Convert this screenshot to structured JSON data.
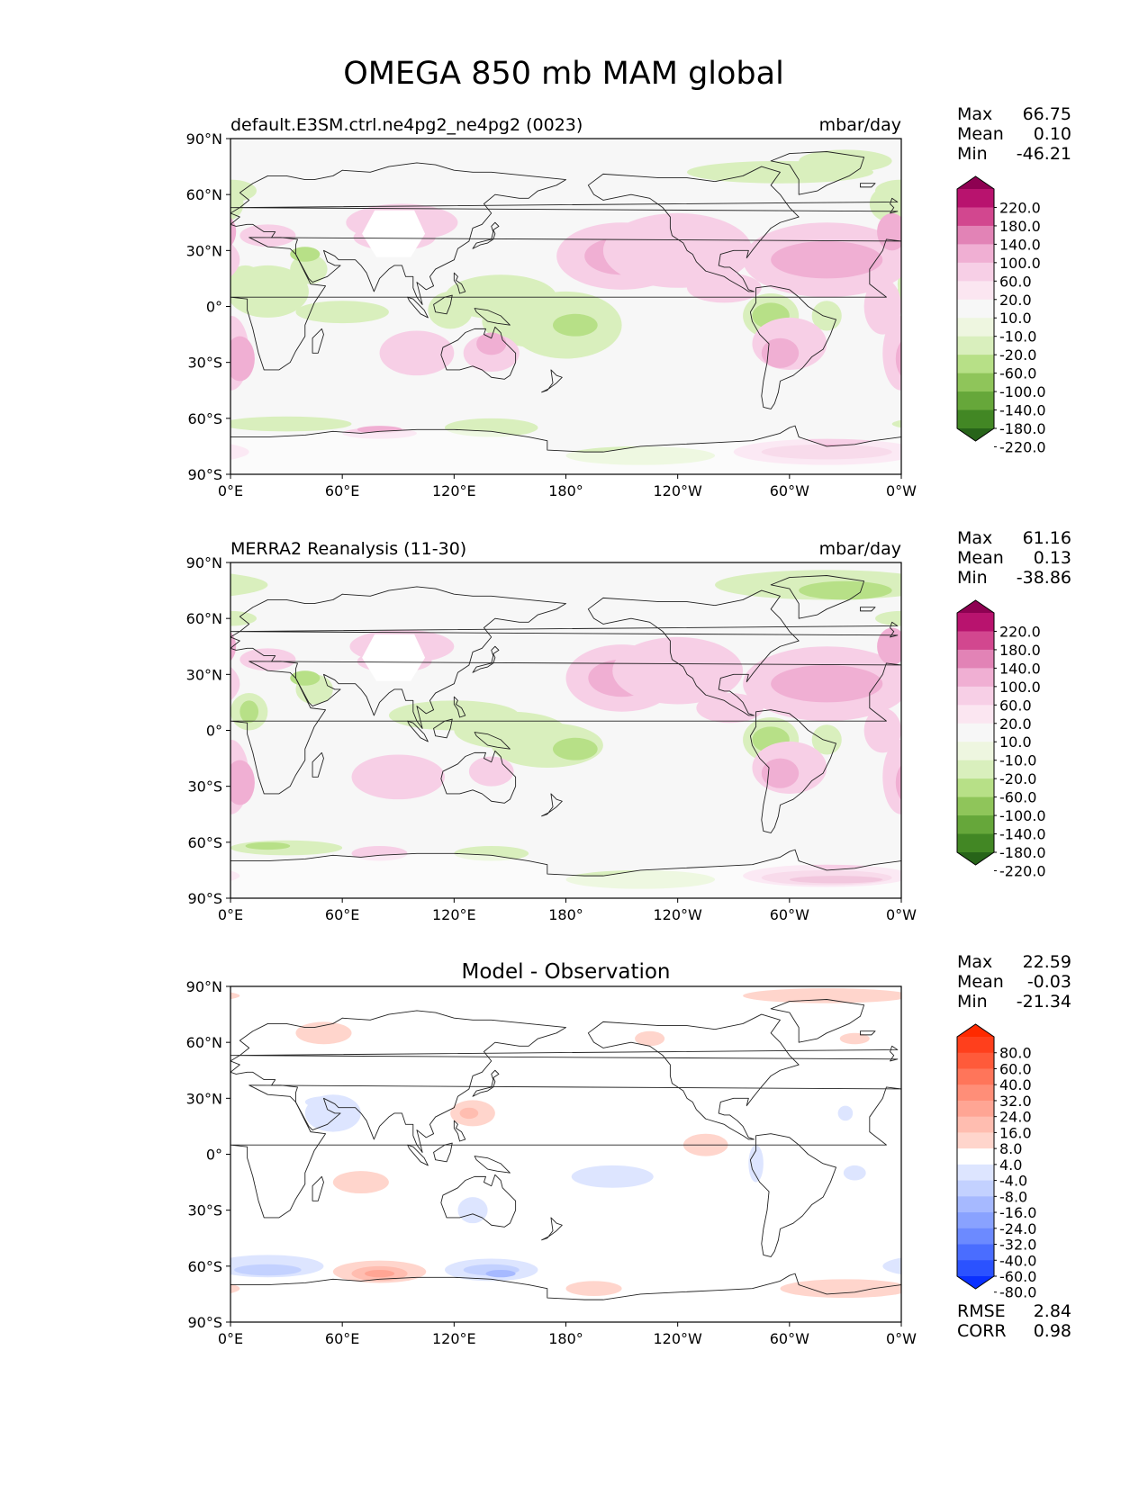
{
  "title": "OMEGA 850 mb MAM global",
  "lat_ticks": [
    "90°N",
    "60°N",
    "30°N",
    "0°",
    "30°S",
    "60°S",
    "90°S"
  ],
  "lon_ticks": [
    "0°E",
    "60°E",
    "120°E",
    "180°",
    "120°W",
    "60°W",
    "0°W"
  ],
  "stat_labels": {
    "max": "Max",
    "mean": "Mean",
    "min": "Min",
    "rmse": "RMSE",
    "corr": "CORR"
  },
  "panels": [
    {
      "title_left": "default.E3SM.ctrl.ne4pg2_ne4pg2 (0023)",
      "title_center": "",
      "title_right": "mbar/day",
      "stats": {
        "max": "66.75",
        "mean": "0.10",
        "min": "-46.21"
      },
      "colorbar": {
        "levels": [
          "220.0",
          "180.0",
          "140.0",
          "100.0",
          "60.0",
          "20.0",
          "10.0",
          "-10.0",
          "-20.0",
          "-60.0",
          "-100.0",
          "-140.0",
          "-180.0",
          "-220.0"
        ],
        "colors": [
          "#8e0152",
          "#b8136e",
          "#d2478f",
          "#e283b6",
          "#f0afd3",
          "#f7cfe6",
          "#fbe6f1",
          "#f7f7f7",
          "#eef6e0",
          "#d9efbd",
          "#b7e087",
          "#8fc55a",
          "#66a73a",
          "#428724",
          "#276419"
        ]
      },
      "field": "model"
    },
    {
      "title_left": "MERRA2 Reanalysis (11-30)",
      "title_center": "",
      "title_right": "mbar/day",
      "stats": {
        "max": "61.16",
        "mean": "0.13",
        "min": "-38.86"
      },
      "colorbar": {
        "levels": [
          "220.0",
          "180.0",
          "140.0",
          "100.0",
          "60.0",
          "20.0",
          "10.0",
          "-10.0",
          "-20.0",
          "-60.0",
          "-100.0",
          "-140.0",
          "-180.0",
          "-220.0"
        ],
        "colors": [
          "#8e0152",
          "#b8136e",
          "#d2478f",
          "#e283b6",
          "#f0afd3",
          "#f7cfe6",
          "#fbe6f1",
          "#f7f7f7",
          "#eef6e0",
          "#d9efbd",
          "#b7e087",
          "#8fc55a",
          "#66a73a",
          "#428724",
          "#276419"
        ]
      },
      "field": "obs"
    },
    {
      "title_left": "",
      "title_center": "Model - Observation",
      "title_right": "",
      "stats": {
        "max": "22.59",
        "mean": "-0.03",
        "min": "-21.34"
      },
      "extra_stats": {
        "rmse": "2.84",
        "corr": "0.98"
      },
      "colorbar": {
        "levels": [
          "80.0",
          "60.0",
          "40.0",
          "32.0",
          "24.0",
          "16.0",
          "8.0",
          "4.0",
          "-4.0",
          "-8.0",
          "-16.0",
          "-24.0",
          "-32.0",
          "-40.0",
          "-60.0",
          "-80.0"
        ],
        "colors": [
          "#ff2a00",
          "#ff3f1c",
          "#ff5a3a",
          "#ff755a",
          "#ff8e78",
          "#ffa594",
          "#ffbdb0",
          "#ffd5cc",
          "#ffffff",
          "#dde5ff",
          "#c3d1ff",
          "#a6b9ff",
          "#89a2ff",
          "#6c8aff",
          "#4a6dff",
          "#2b52ff",
          "#0a30ff"
        ]
      },
      "field": "diff"
    }
  ]
}
